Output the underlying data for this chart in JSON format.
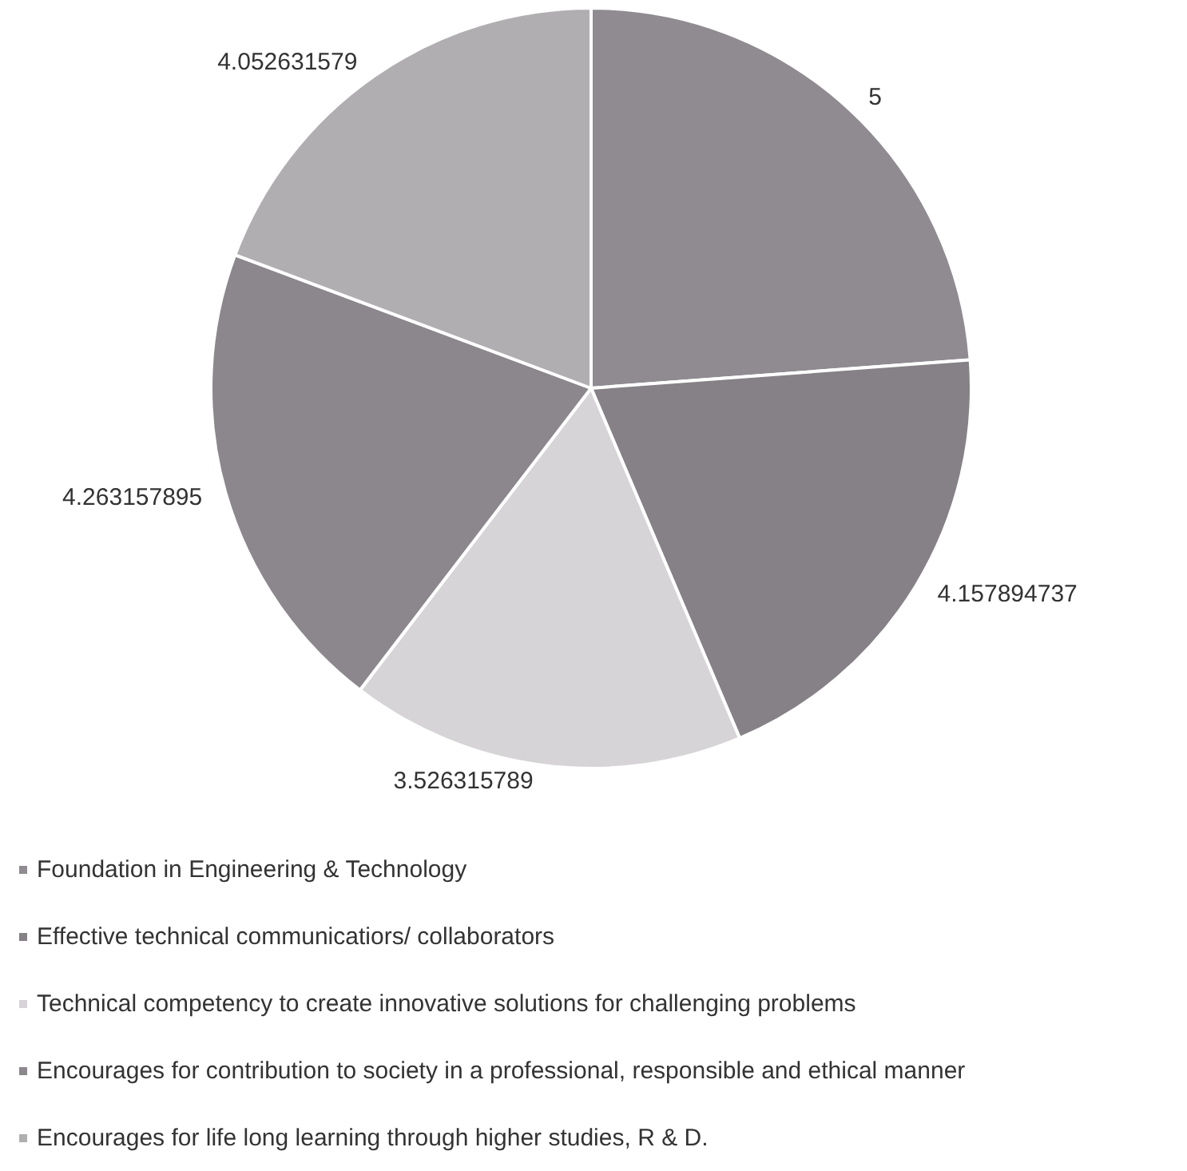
{
  "chart_data": {
    "type": "pie",
    "categories": [
      "Foundation in Engineering & Technology",
      "Effective technical communicatiors/ collaborators",
      "Technical competency to create innovative solutions for challenging problems",
      "Encourages for contribution to society in a professional, responsible and ethical manner",
      "Encourages for life long learning through higher studies, R & D."
    ],
    "values": [
      5,
      4.157894737,
      3.526315789,
      4.263157895,
      4.052631579
    ],
    "colors": [
      "#8f8b91",
      "#858186",
      "#d6d4d7",
      "#8b878c",
      "#b1aeb2"
    ],
    "data_labels": true,
    "legend": "bottom"
  }
}
